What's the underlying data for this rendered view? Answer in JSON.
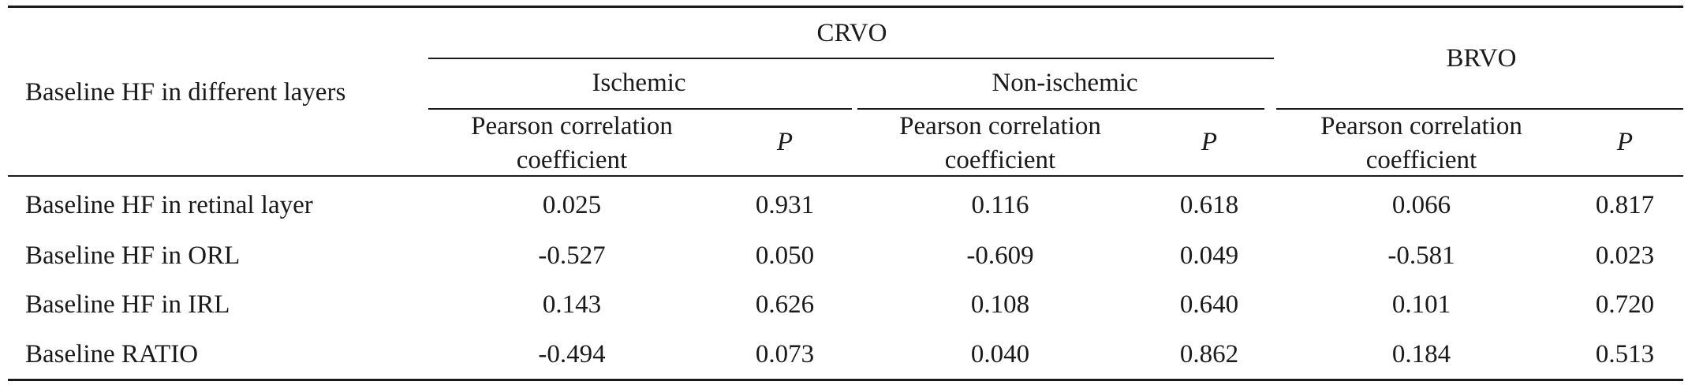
{
  "table": {
    "row_header": "Baseline HF in different layers",
    "groups": {
      "crvo": "CRVO",
      "brvo": "BRVO"
    },
    "subgroups": {
      "ischemic": "Ischemic",
      "non_ischemic": "Non-ischemic"
    },
    "columns": {
      "pearson": "Pearson correlation coefficient",
      "p": "P"
    },
    "rows": [
      {
        "label": "Baseline HF in retinal layer",
        "values": [
          "0.025",
          "0.931",
          "0.116",
          "0.618",
          "0.066",
          "0.817"
        ]
      },
      {
        "label": "Baseline HF in ORL",
        "values": [
          "-0.527",
          "0.050",
          "-0.609",
          "0.049",
          "-0.581",
          "0.023"
        ]
      },
      {
        "label": "Baseline HF in IRL",
        "values": [
          "0.143",
          "0.626",
          "0.108",
          "0.640",
          "0.101",
          "0.720"
        ]
      },
      {
        "label": "Baseline RATIO",
        "values": [
          "-0.494",
          "0.073",
          "0.040",
          "0.862",
          "0.184",
          "0.513"
        ]
      }
    ]
  }
}
